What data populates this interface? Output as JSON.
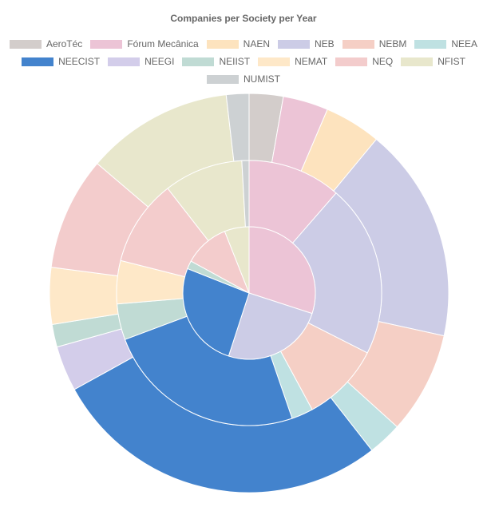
{
  "chart_data": {
    "type": "doughnut",
    "title": "Companies per Society per Year",
    "legend_position": "top",
    "categories": [
      "AeroTéc",
      "Fórum Mecânica",
      "NAEN",
      "NEB",
      "NEBM",
      "NEEA",
      "NEECIST",
      "NEEGI",
      "NEIIST",
      "NEMAT",
      "NEQ",
      "NFIST",
      "NUMIST"
    ],
    "colors": [
      "#d3cdcb",
      "#ecc4d6",
      "#fde3be",
      "#cccce6",
      "#f5cfc5",
      "#bfe1e2",
      "#4383cd",
      "#d3cdea",
      "#c0dbd4",
      "#fee8c8",
      "#f3cccc",
      "#e8e7cc",
      "#cdd1d3"
    ],
    "series": [
      {
        "values": [
          3,
          4,
          5,
          19,
          9,
          3,
          30,
          4,
          2,
          5,
          10,
          13,
          2
        ]
      },
      {
        "values": [
          0,
          13,
          0,
          24,
          11,
          3,
          28,
          0,
          5,
          6,
          12,
          11,
          1
        ]
      },
      {
        "values": [
          0,
          30,
          0,
          25,
          0,
          0,
          26,
          0,
          2,
          0,
          11,
          6,
          0
        ]
      }
    ]
  }
}
